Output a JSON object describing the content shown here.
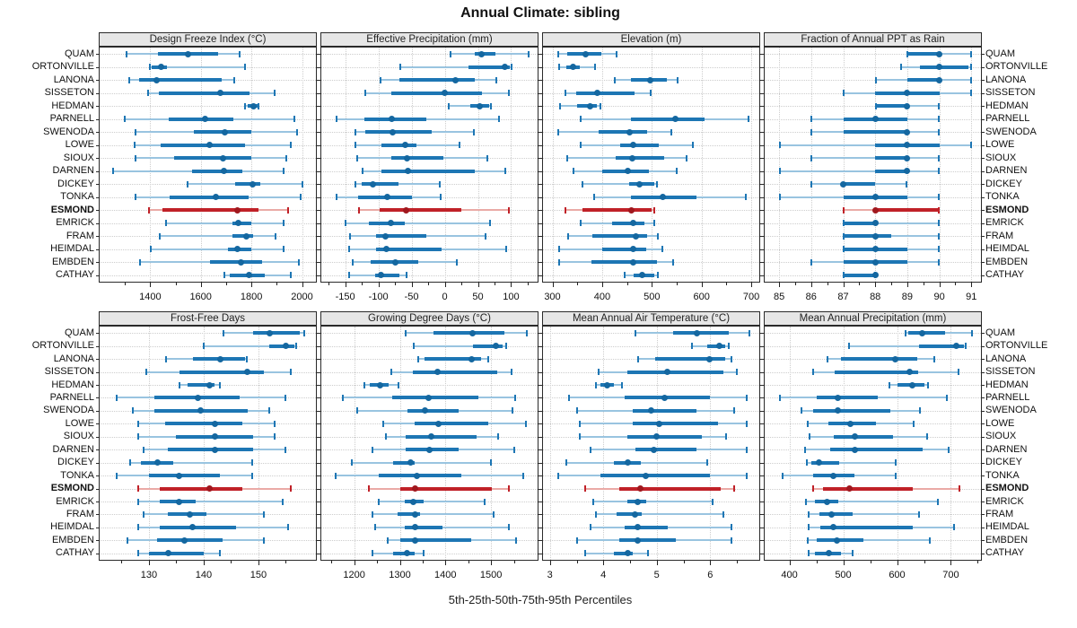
{
  "title": "Annual Climate: sibling",
  "footer": "5th-25th-50th-75th-95th Percentiles",
  "colors": {
    "blue": "#1d76b4",
    "blue_light": "#99c4e0",
    "blue_dot": "#1467a0",
    "red": "#c02128",
    "red_light": "#eaaaa6",
    "red_dot": "#a0181e",
    "grid": "#cdcdcd",
    "header_bg": "#e6e6e6",
    "border": "#2a2a2a"
  },
  "chart_data": {
    "type": "dot-interval",
    "subtitle_note": "horizontal 5th-25th-50th-75th-95th percentile intervals per station",
    "percentile_labels": [
      "5th",
      "25th",
      "50th",
      "75th",
      "95th"
    ],
    "legend_position": "none",
    "grid": "dotted",
    "highlight": "ESMOND",
    "stations": [
      "QUAM",
      "ORTONVILLE",
      "LANONA",
      "SISSETON",
      "HEDMAN",
      "PARNELL",
      "SWENODA",
      "LOWE",
      "SIOUX",
      "DARNEN",
      "DICKEY",
      "TONKA",
      "ESMOND",
      "EMRICK",
      "FRAM",
      "HEIMDAL",
      "EMBDEN",
      "CATHAY"
    ],
    "panels": [
      {
        "title": "Design Freeze Index (°C)",
        "xlim": [
          1200,
          2055
        ],
        "ticks": [
          1400,
          1600,
          1800,
          2000
        ],
        "values": [
          [
            1305,
            1432,
            1548,
            1669,
            1756
          ],
          [
            1395,
            1407,
            1444,
            1465,
            1777
          ],
          [
            1314,
            1357,
            1424,
            1681,
            1735
          ],
          [
            1388,
            1435,
            1677,
            1793,
            1892
          ],
          [
            1773,
            1785,
            1808,
            1825,
            1831
          ],
          [
            1296,
            1473,
            1617,
            1727,
            1970
          ],
          [
            1341,
            1571,
            1694,
            1800,
            1982
          ],
          [
            1335,
            1441,
            1635,
            1776,
            1956
          ],
          [
            1341,
            1494,
            1686,
            1800,
            1939
          ],
          [
            1253,
            1565,
            1691,
            1765,
            1929
          ],
          [
            1547,
            1735,
            1804,
            1835,
            2004
          ],
          [
            1341,
            1476,
            1659,
            1788,
            1997
          ],
          [
            1394,
            1447,
            1745,
            1829,
            1945
          ],
          [
            1459,
            1724,
            1747,
            1800,
            1929
          ],
          [
            1435,
            1724,
            1780,
            1806,
            1898
          ],
          [
            1402,
            1706,
            1745,
            1800,
            1929
          ],
          [
            1359,
            1635,
            1759,
            1841,
            1988
          ],
          [
            1690,
            1715,
            1790,
            1853,
            1958
          ]
        ]
      },
      {
        "title": "Effective Precipitation (mm)",
        "xlim": [
          -186,
          140
        ],
        "ticks": [
          -150,
          -100,
          -50,
          0,
          50,
          100
        ],
        "values": [
          [
            8,
            45,
            56,
            76,
            127
          ],
          [
            -68,
            36,
            91,
            98,
            102
          ],
          [
            -98,
            -69,
            16,
            45,
            79
          ],
          [
            -121,
            -80,
            0,
            56,
            97
          ],
          [
            5,
            38,
            53,
            67,
            70
          ],
          [
            -164,
            -121,
            -80,
            -28,
            83
          ],
          [
            -136,
            -120,
            -78,
            -20,
            45
          ],
          [
            -135,
            -96,
            -60,
            -42,
            23
          ],
          [
            -132,
            -80,
            -57,
            -2,
            65
          ],
          [
            -125,
            -96,
            -56,
            45,
            92
          ],
          [
            -136,
            -125,
            -108,
            -69,
            -7
          ],
          [
            -164,
            -130,
            -87,
            -49,
            -5
          ],
          [
            -130,
            -98,
            -58,
            25,
            97
          ],
          [
            -150,
            -114,
            -81,
            -60,
            69
          ],
          [
            -144,
            -103,
            -90,
            -28,
            62
          ],
          [
            -145,
            -104,
            -88,
            -4,
            93
          ],
          [
            -139,
            -111,
            -74,
            -40,
            19
          ],
          [
            -145,
            -105,
            -96,
            -68,
            -57
          ]
        ]
      },
      {
        "title": "Elevation (m)",
        "xlim": [
          281,
          716
        ],
        "ticks": [
          300,
          400,
          500,
          600,
          700
        ],
        "values": [
          [
            311,
            330,
            367,
            399,
            429
          ],
          [
            313,
            327,
            341,
            354,
            386
          ],
          [
            425,
            457,
            496,
            530,
            553
          ],
          [
            326,
            347,
            391,
            466,
            499
          ],
          [
            315,
            350,
            376,
            390,
            397
          ],
          [
            356,
            457,
            547,
            605,
            696
          ],
          [
            310,
            392,
            455,
            490,
            540
          ],
          [
            356,
            436,
            463,
            513,
            583
          ],
          [
            328,
            427,
            461,
            524,
            571
          ],
          [
            342,
            400,
            452,
            495,
            551
          ],
          [
            359,
            454,
            475,
            505,
            511
          ],
          [
            382,
            457,
            521,
            590,
            689
          ],
          [
            325,
            360,
            458,
            500,
            505
          ],
          [
            355,
            420,
            462,
            485,
            505
          ],
          [
            330,
            380,
            468,
            490,
            512
          ],
          [
            313,
            400,
            462,
            488,
            522
          ],
          [
            312,
            379,
            462,
            511,
            544
          ],
          [
            445,
            463,
            481,
            505,
            512
          ]
        ]
      },
      {
        "title": "Fraction of Annual PPT as Rain",
        "xlim": [
          84.55,
          91.3
        ],
        "ticks": [
          85,
          86,
          87,
          88,
          89,
          90,
          91
        ],
        "values": [
          [
            89,
            89,
            90,
            90,
            91
          ],
          [
            88.8,
            89.4,
            90,
            90.9,
            91
          ],
          [
            88,
            89,
            90,
            90,
            91
          ],
          [
            87,
            88,
            89,
            90,
            91
          ],
          [
            88,
            88,
            89,
            89,
            90
          ],
          [
            86,
            87,
            88,
            89,
            90
          ],
          [
            86,
            87,
            89,
            89,
            90
          ],
          [
            85,
            88,
            89,
            90,
            91
          ],
          [
            86,
            88,
            89,
            89,
            90
          ],
          [
            85,
            88,
            89,
            89,
            90
          ],
          [
            86,
            87,
            87,
            88,
            89
          ],
          [
            85,
            87,
            88,
            89,
            90
          ],
          [
            87,
            88,
            88,
            90,
            90
          ],
          [
            87,
            87,
            88,
            88,
            90
          ],
          [
            87,
            87,
            88,
            88.5,
            90
          ],
          [
            87,
            87,
            88,
            89,
            90
          ],
          [
            86,
            87,
            88,
            89,
            90
          ],
          [
            87,
            87,
            88,
            88,
            88
          ]
        ]
      },
      {
        "title": "Frost-Free Days",
        "xlim": [
          121,
          160.5
        ],
        "ticks": [
          130,
          140,
          150
        ],
        "values": [
          [
            143.5,
            149,
            152,
            157.5,
            158.5
          ],
          [
            140,
            152,
            155,
            156.5,
            157
          ],
          [
            133,
            138,
            143,
            147.5,
            148
          ],
          [
            129.5,
            135.5,
            148,
            151,
            156
          ],
          [
            135.5,
            137,
            141,
            142,
            143
          ],
          [
            124,
            131,
            139,
            146.5,
            155
          ],
          [
            127,
            131,
            139.5,
            148,
            152
          ],
          [
            128,
            133,
            142,
            147,
            153
          ],
          [
            128,
            135,
            142,
            149,
            153
          ],
          [
            129,
            133.5,
            142,
            149,
            155
          ],
          [
            126.5,
            128.5,
            131.5,
            134.5,
            149
          ],
          [
            124,
            130,
            135.5,
            143,
            149
          ],
          [
            128,
            132,
            141,
            147,
            156
          ],
          [
            128,
            132,
            135.5,
            138.5,
            154.5
          ],
          [
            129,
            133.5,
            137.5,
            140.5,
            151
          ],
          [
            128,
            132,
            138,
            146,
            155.5
          ],
          [
            126,
            131.5,
            136.5,
            143.5,
            151
          ],
          [
            128,
            130,
            133.5,
            140,
            143
          ]
        ]
      },
      {
        "title": "Growing Degree Days (°C)",
        "xlim": [
          1128,
          1602
        ],
        "ticks": [
          1200,
          1300,
          1400,
          1500
        ],
        "values": [
          [
            1312,
            1374,
            1460,
            1530,
            1580
          ],
          [
            1330,
            1460,
            1510,
            1525,
            1535
          ],
          [
            1339,
            1354,
            1457,
            1478,
            1494
          ],
          [
            1281,
            1328,
            1382,
            1514,
            1545
          ],
          [
            1221,
            1235,
            1257,
            1276,
            1299
          ],
          [
            1175,
            1283,
            1363,
            1472,
            1553
          ],
          [
            1205,
            1317,
            1356,
            1429,
            1547
          ],
          [
            1263,
            1333,
            1384,
            1493,
            1578
          ],
          [
            1268,
            1312,
            1369,
            1468,
            1517
          ],
          [
            1239,
            1312,
            1364,
            1428,
            1552
          ],
          [
            1193,
            1285,
            1324,
            1333,
            1500
          ],
          [
            1159,
            1253,
            1337,
            1435,
            1571
          ],
          [
            1231,
            1300,
            1333,
            1501,
            1540
          ],
          [
            1252,
            1311,
            1330,
            1352,
            1487
          ],
          [
            1239,
            1296,
            1333,
            1345,
            1506
          ],
          [
            1244,
            1311,
            1333,
            1393,
            1539
          ],
          [
            1272,
            1300,
            1333,
            1457,
            1556
          ],
          [
            1240,
            1286,
            1315,
            1333,
            1354
          ]
        ]
      },
      {
        "title": "Mean Annual Air Temperature (°C)",
        "xlim": [
          2.87,
          6.92
        ],
        "ticks": [
          3,
          4,
          5,
          6
        ],
        "values": [
          [
            4.6,
            5.3,
            5.75,
            6.35,
            6.75
          ],
          [
            5.65,
            5.95,
            6.17,
            6.28,
            6.35
          ],
          [
            4.65,
            4.97,
            5.99,
            6.28,
            6.4
          ],
          [
            3.9,
            4.45,
            5.2,
            6.25,
            6.5
          ],
          [
            3.85,
            3.95,
            4.07,
            4.2,
            4.35
          ],
          [
            3.35,
            4.4,
            5.15,
            6.0,
            6.7
          ],
          [
            3.5,
            4.55,
            4.9,
            5.75,
            6.45
          ],
          [
            3.55,
            4.55,
            5.05,
            6.15,
            6.7
          ],
          [
            3.55,
            4.45,
            5.0,
            5.85,
            6.3
          ],
          [
            3.75,
            4.6,
            4.95,
            5.75,
            6.7
          ],
          [
            3.3,
            4.2,
            4.45,
            4.7,
            5.95
          ],
          [
            3.15,
            3.95,
            4.8,
            6.0,
            6.7
          ],
          [
            3.65,
            4.3,
            4.7,
            6.2,
            6.45
          ],
          [
            3.8,
            4.45,
            4.65,
            4.8,
            6.05
          ],
          [
            3.85,
            4.25,
            4.6,
            4.72,
            6.25
          ],
          [
            3.75,
            4.4,
            4.65,
            5.2,
            6.4
          ],
          [
            3.5,
            4.3,
            4.65,
            5.35,
            6.4
          ],
          [
            3.65,
            4.2,
            4.45,
            4.55,
            4.85
          ]
        ]
      },
      {
        "title": "Mean Annual Precipitation (mm)",
        "xlim": [
          354,
          756
        ],
        "ticks": [
          400,
          500,
          600,
          700
        ],
        "values": [
          [
            615,
            621,
            647,
            690,
            740
          ],
          [
            510,
            640,
            710,
            724,
            729
          ],
          [
            470,
            496,
            597,
            638,
            670
          ],
          [
            443,
            484,
            623,
            640,
            715
          ],
          [
            585,
            600,
            628,
            650,
            658
          ],
          [
            382,
            450,
            490,
            565,
            693
          ],
          [
            422,
            444,
            490,
            588,
            643
          ],
          [
            433,
            472,
            514,
            561,
            632
          ],
          [
            436,
            482,
            521,
            593,
            657
          ],
          [
            428,
            475,
            522,
            647,
            697
          ],
          [
            432,
            440,
            454,
            492,
            599
          ],
          [
            386,
            444,
            482,
            521,
            599
          ],
          [
            443,
            462,
            512,
            629,
            716
          ],
          [
            430,
            448,
            470,
            490,
            676
          ],
          [
            434,
            456,
            478,
            518,
            642
          ],
          [
            434,
            458,
            482,
            630,
            707
          ],
          [
            433,
            450,
            489,
            537,
            662
          ],
          [
            434,
            448,
            473,
            496,
            518
          ]
        ]
      }
    ]
  }
}
